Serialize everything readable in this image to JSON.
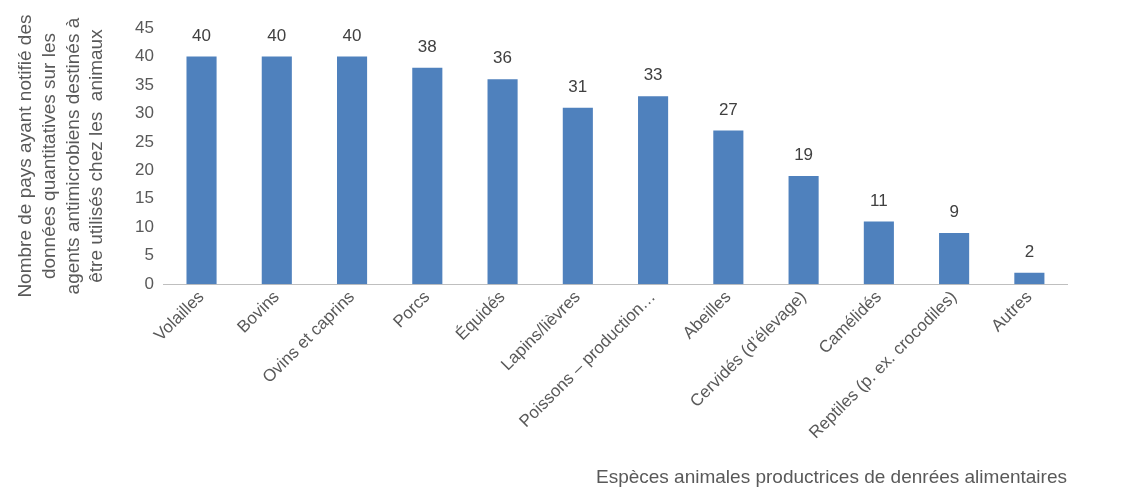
{
  "chart_data": {
    "type": "bar",
    "xlabel": "Espèces animales productrices de denrées alimentaires",
    "ylabel": "Nombre de pays ayant notifié des données quantitatives sur les agents antimicrobiens destinés à être utilisés chez les  animaux",
    "categories": [
      "Volailles",
      "Bovins",
      "Ovins et caprins",
      "Porcs",
      "Équidés",
      "Lapins/lièvres",
      "Poissons – production…",
      "Abeilles",
      "Cervidés (d’élevage)",
      "Camélidés",
      "Reptiles (p. ex. crocodiles)",
      "Autres"
    ],
    "values": [
      40,
      40,
      40,
      38,
      36,
      31,
      33,
      27,
      19,
      11,
      9,
      2
    ],
    "color": "#4f81bd",
    "ylim": [
      0,
      45
    ],
    "yticks": [
      0,
      5,
      10,
      15,
      20,
      25,
      30,
      35,
      40,
      45
    ],
    "grid": false,
    "legend": false,
    "data_labels": true
  }
}
